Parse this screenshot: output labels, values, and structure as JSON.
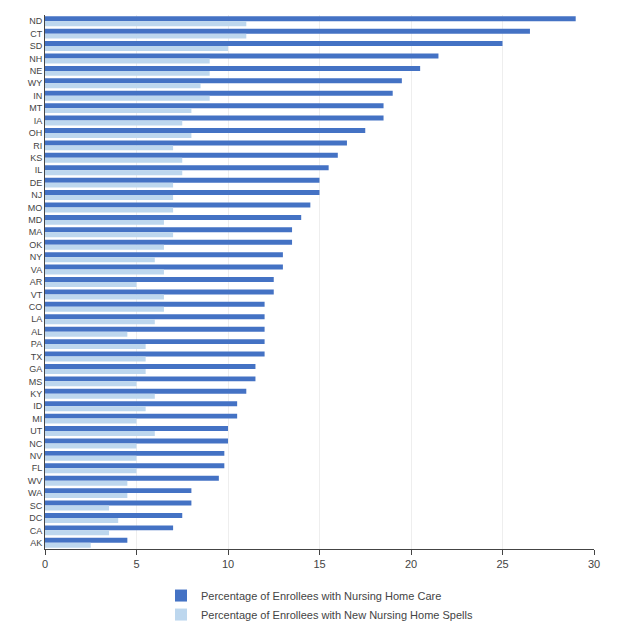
{
  "chart_data": {
    "type": "bar",
    "orientation": "horizontal",
    "categories": [
      "ND",
      "CT",
      "SD",
      "NH",
      "NE",
      "WY",
      "IN",
      "MT",
      "IA",
      "OH",
      "RI",
      "KS",
      "IL",
      "DE",
      "NJ",
      "MO",
      "MD",
      "MA",
      "OK",
      "NY",
      "VA",
      "AR",
      "VT",
      "CO",
      "LA",
      "AL",
      "PA",
      "TX",
      "GA",
      "MS",
      "KY",
      "ID",
      "MI",
      "UT",
      "NC",
      "NV",
      "FL",
      "WV",
      "WA",
      "SC",
      "DC",
      "CA",
      "AK"
    ],
    "series": [
      {
        "name": "Percentage of Enrollees with Nursing Home Care",
        "color": "#4472C4",
        "values": [
          29.0,
          26.5,
          25.0,
          21.5,
          20.5,
          19.5,
          19.0,
          18.5,
          18.5,
          17.5,
          16.5,
          16.0,
          15.5,
          15.0,
          15.0,
          14.5,
          14.0,
          13.5,
          13.5,
          13.0,
          13.0,
          12.5,
          12.5,
          12.0,
          12.0,
          12.0,
          12.0,
          12.0,
          11.5,
          11.5,
          11.0,
          10.5,
          10.5,
          10.0,
          10.0,
          9.8,
          9.8,
          9.5,
          8.0,
          8.0,
          7.5,
          7.0,
          4.5
        ]
      },
      {
        "name": "Percentage of Enrollees with New Nursing Home Spells",
        "color": "#BDD7EE",
        "values": [
          11.0,
          11.0,
          10.0,
          9.0,
          9.0,
          8.5,
          9.0,
          8.0,
          7.5,
          8.0,
          7.0,
          7.5,
          7.5,
          7.0,
          7.0,
          7.0,
          6.5,
          7.0,
          6.5,
          6.0,
          6.5,
          5.0,
          6.5,
          6.5,
          6.0,
          4.5,
          5.5,
          5.5,
          5.5,
          5.0,
          6.0,
          5.5,
          5.0,
          6.0,
          5.0,
          5.0,
          5.0,
          4.5,
          4.5,
          3.5,
          4.0,
          3.5,
          2.5
        ]
      }
    ],
    "xlim": [
      0,
      30
    ],
    "xticks": [
      0,
      5,
      10,
      15,
      20,
      25,
      30
    ],
    "grid": true,
    "legend": "bottom"
  }
}
